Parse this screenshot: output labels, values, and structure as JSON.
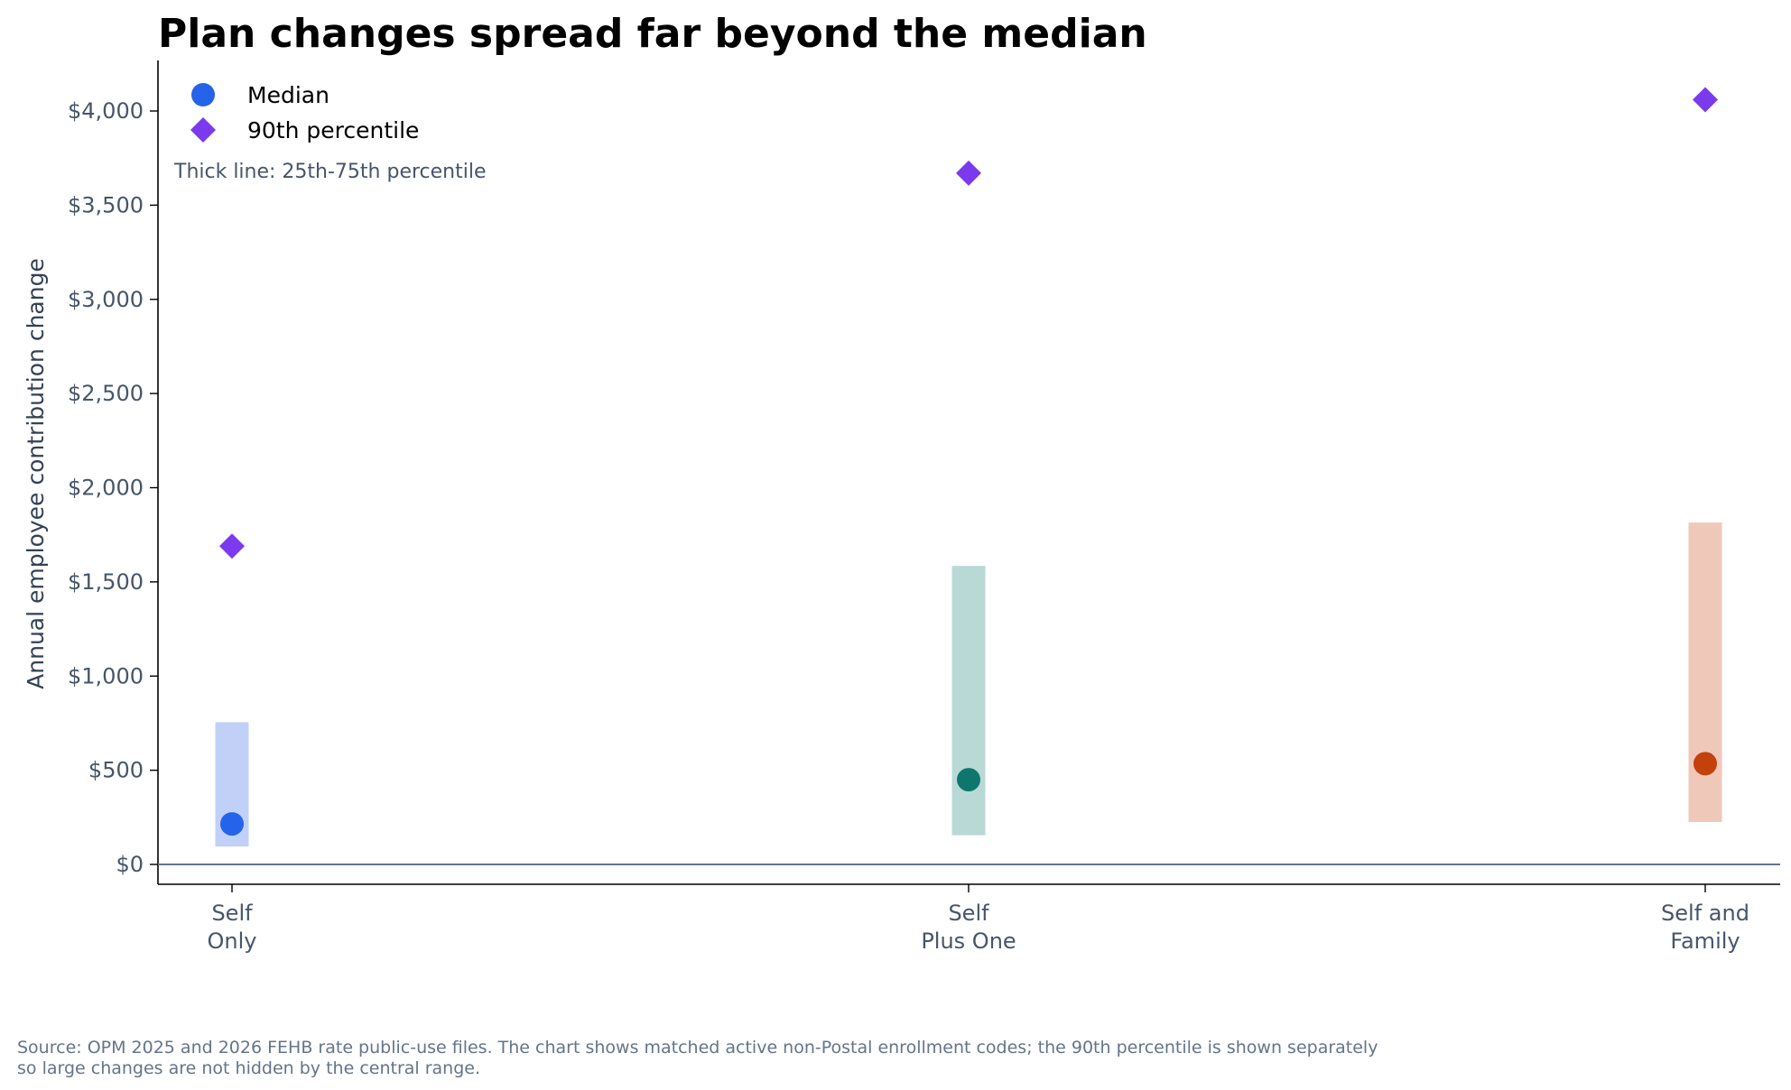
{
  "chart_data": {
    "type": "range-dot",
    "title": "Plan changes spread far beyond the median",
    "ylabel": "Annual employee contribution change",
    "ylim": [
      -100,
      4250
    ],
    "yticks": [
      0,
      500,
      1000,
      1500,
      2000,
      2500,
      3000,
      3500,
      4000
    ],
    "ytick_labels": [
      "$0",
      "$500",
      "$1,000",
      "$1,500",
      "$2,000",
      "$2,500",
      "$3,000",
      "$3,500",
      "$4,000"
    ],
    "categories": [
      {
        "line1": "Self",
        "line2": "Only"
      },
      {
        "line1": "Self",
        "line2": "Plus One"
      },
      {
        "line1": "Self and",
        "line2": "Family"
      }
    ],
    "p25": [
      95,
      155,
      225
    ],
    "p75": [
      755,
      1585,
      1815
    ],
    "median": [
      215,
      450,
      535
    ],
    "p90": [
      1690,
      3670,
      4060
    ],
    "median_colors": [
      "#2563eb",
      "#0f766e",
      "#c2410c"
    ],
    "range_colors": [
      "#c1d0f7",
      "#b9d9d7",
      "#efc8b9"
    ],
    "p90_color": "#7c3aed",
    "legend": {
      "position": "top-left",
      "items": [
        {
          "label": "Median",
          "marker": "circle",
          "color": "#2563eb"
        },
        {
          "label": "90th percentile",
          "marker": "diamond",
          "color": "#7c3aed"
        }
      ]
    },
    "annotation": "Thick line: 25th-75th percentile",
    "grid": false
  },
  "source": {
    "line1": "Source: OPM 2025 and 2026 FEHB rate public-use files. The chart shows matched active non-Postal enrollment codes; the 90th percentile is shown separately",
    "line2": "so large changes are not hidden by the central range."
  }
}
